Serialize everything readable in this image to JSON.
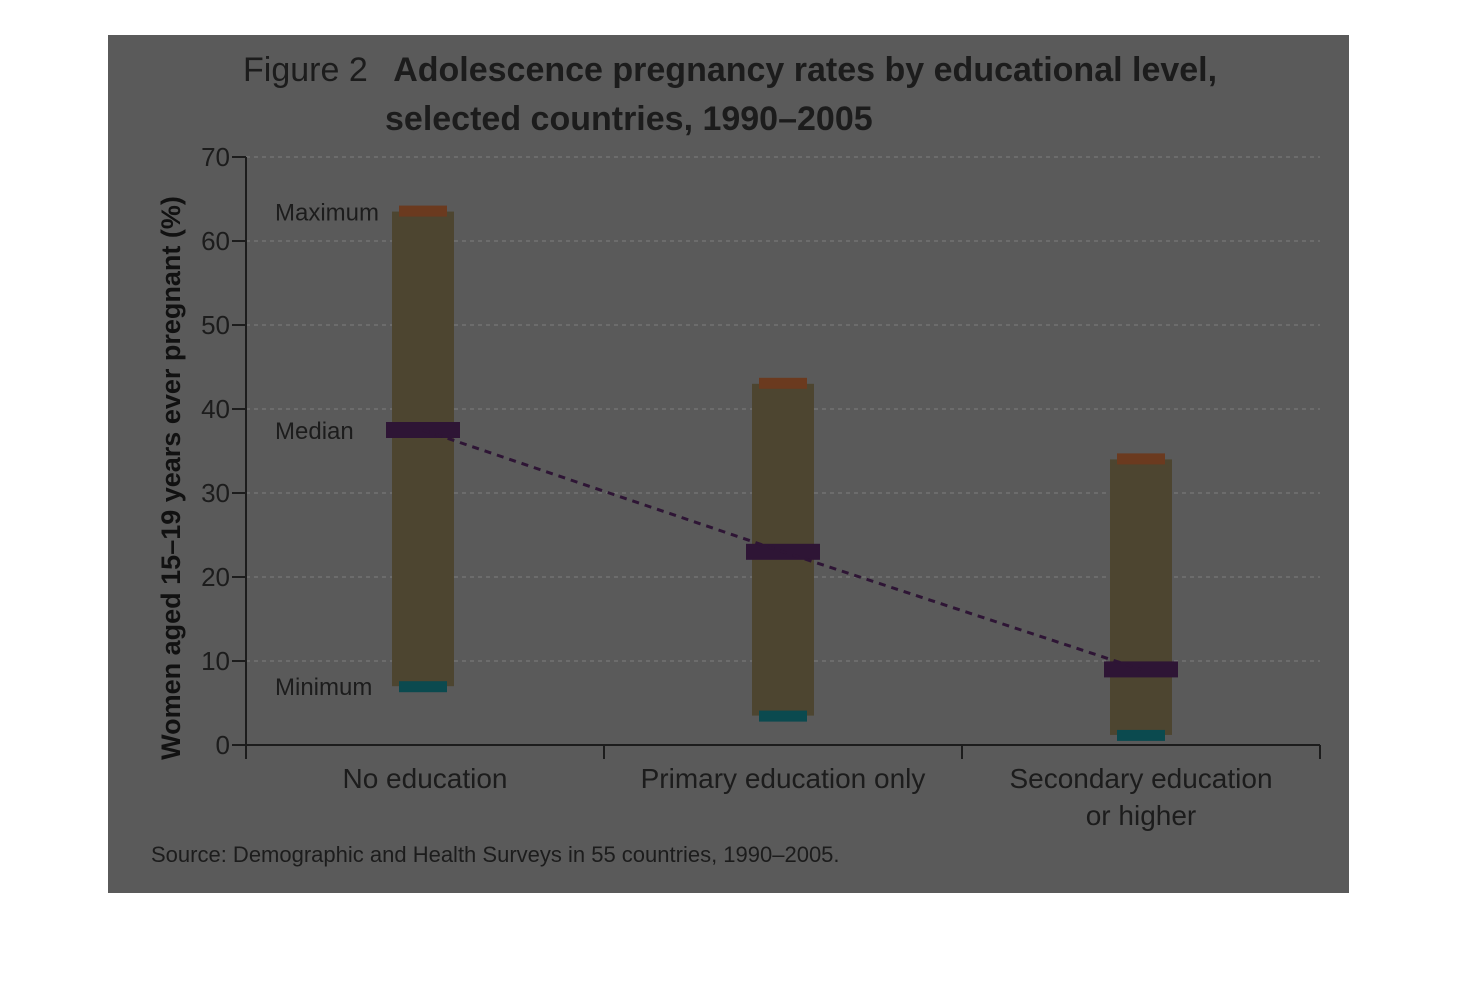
{
  "figure": {
    "number_label": "Figure 2",
    "title_line1": "Adolescence pregnancy rates by educational level,",
    "title_line2": "selected countries, 1990–2005",
    "source": "Source: Demographic and Health Surveys in 55 countries, 1990–2005."
  },
  "colors": {
    "panel_bg": "#5a5a5a",
    "range_bar": "#4d4530",
    "maximum_marker": "#6b3a1f",
    "median_marker": "#2e1535",
    "minimum_marker": "#0b4a4f",
    "median_line": "#2e1535",
    "grid": "#777777",
    "axis": "#1c1c1c"
  },
  "chart_data": {
    "type": "range",
    "title": "Adolescence pregnancy rates by educational level, selected countries, 1990–2005",
    "ylabel": "Women aged 15–19 years ever pregnant (%)",
    "xlabel": "",
    "ylim": [
      0,
      70
    ],
    "yticks": [
      "0",
      "10",
      "20",
      "30",
      "40",
      "50",
      "60",
      "70"
    ],
    "grid": true,
    "categories": [
      [
        "No education"
      ],
      [
        "Primary education only"
      ],
      [
        "Secondary education",
        "or higher"
      ]
    ],
    "maximum": [
      63.5,
      43,
      34
    ],
    "median": [
      37.5,
      23,
      9
    ],
    "minimum": [
      7,
      3.5,
      1.2
    ],
    "annotations": [
      "Maximum",
      "Median",
      "Minimum"
    ]
  }
}
